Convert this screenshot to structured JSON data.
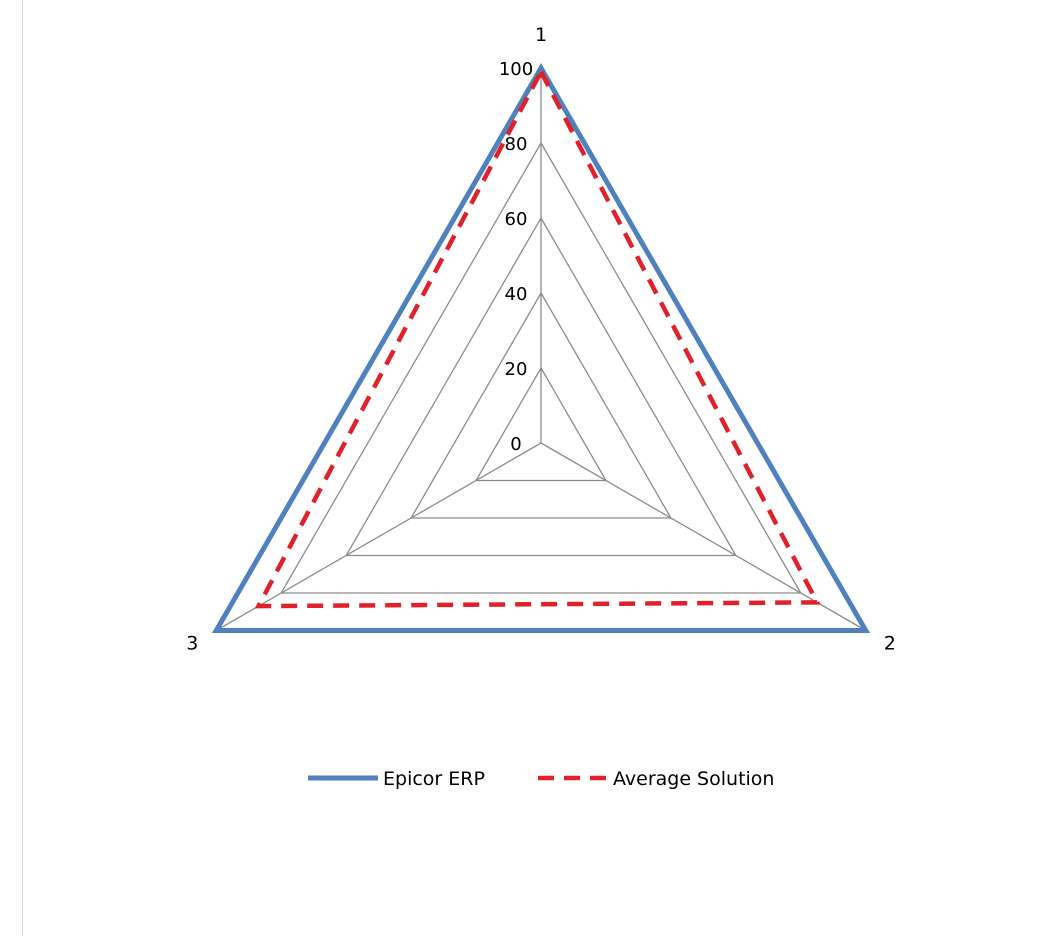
{
  "chart_data": {
    "type": "radar",
    "categories": [
      "1",
      "2",
      "3"
    ],
    "series": [
      {
        "name": "Epicor ERP",
        "values": [
          100,
          100,
          100
        ],
        "color": "#4f81bd",
        "line_style": "solid"
      },
      {
        "name": "Average Solution",
        "values": [
          99,
          85,
          87
        ],
        "color": "#e0202a",
        "line_style": "dashed"
      }
    ],
    "radial_ticks": [
      "0",
      "20",
      "40",
      "60",
      "80",
      "100"
    ],
    "rlim": [
      0,
      100
    ],
    "grid": true,
    "grid_color": "#8c8c8c",
    "legend_position": "bottom"
  }
}
